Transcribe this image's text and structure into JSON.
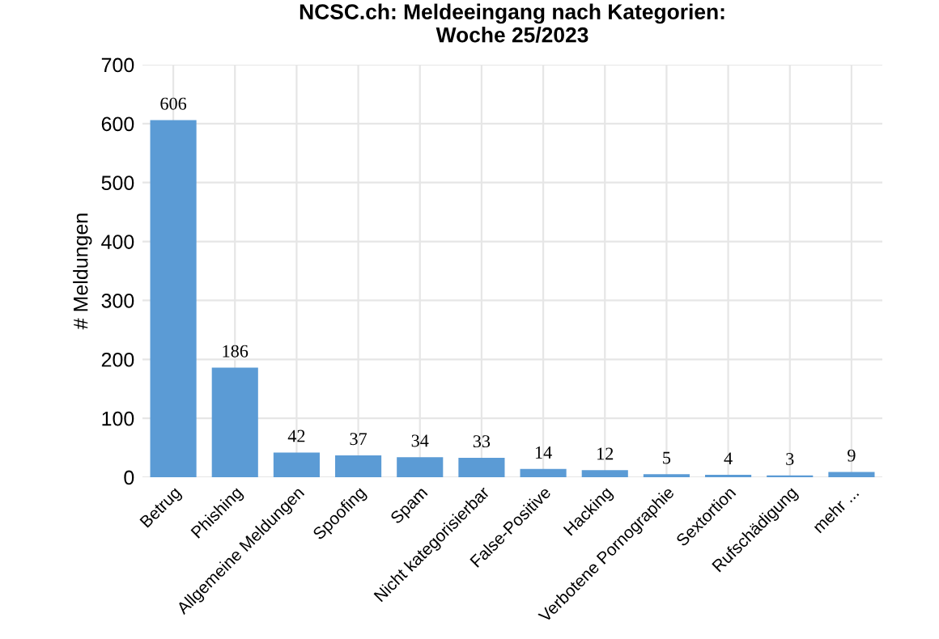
{
  "chart_data": {
    "type": "bar",
    "title": "NCSC.ch: Meldeeingang nach Kategorien:\nWoche 25/2023",
    "ylabel": "# Meldungen",
    "categories": [
      "Betrug",
      "Phishing",
      "Allgemeine Meldungen",
      "Spoofing",
      "Spam",
      "Nicht kategorisierbar",
      "False-Positive",
      "Hacking",
      "Verbotene Pornographie",
      "Sextortion",
      "Rufschädigung",
      "mehr ..."
    ],
    "values": [
      606,
      186,
      42,
      37,
      34,
      33,
      14,
      12,
      5,
      4,
      3,
      9
    ],
    "color": "#5b9bd5",
    "ylim": [
      0,
      700
    ],
    "yticks": [
      0,
      100,
      200,
      300,
      400,
      500,
      600,
      700
    ],
    "grid": true,
    "data_labels": true
  }
}
